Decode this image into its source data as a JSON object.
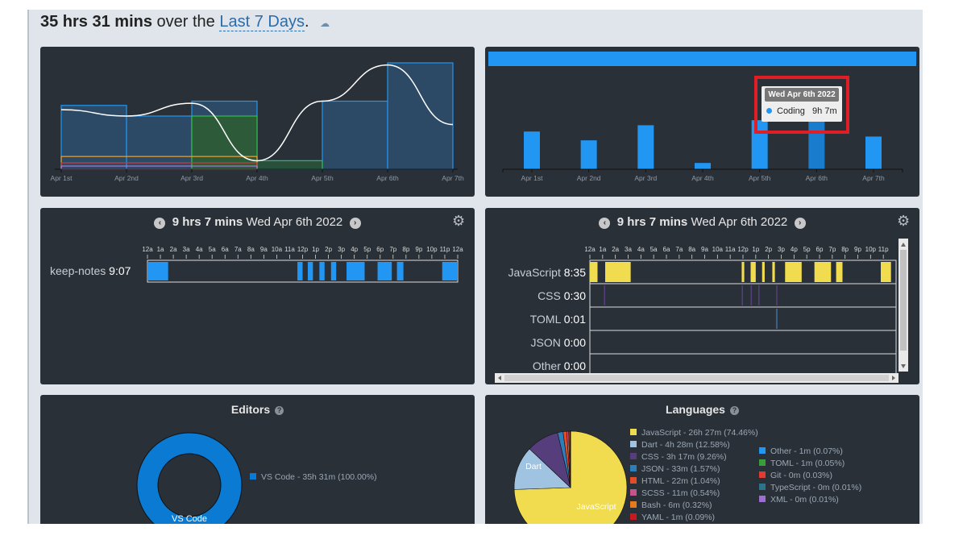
{
  "header": {
    "total": "35 hrs 31 mins",
    "middle": "over the",
    "range": "Last 7 Days",
    "period": ".",
    "cloud_icon": "cloud-download-icon"
  },
  "days": [
    "Apr 1st",
    "Apr 2nd",
    "Apr 3rd",
    "Apr 4th",
    "Apr 5th",
    "Apr 6th",
    "Apr 7th"
  ],
  "daily_bars": [
    0.6,
    0.46,
    0.7,
    0.1,
    0.78,
    0.96,
    0.52
  ],
  "tooltip": {
    "date": "Wed Apr 6th 2022",
    "label": "Coding",
    "value": "9h 7m"
  },
  "projects_day": {
    "title_total": "9 hrs 7 mins",
    "title_date": "Wed Apr 6th 2022",
    "hours": [
      "12a",
      "1a",
      "2a",
      "3a",
      "4a",
      "5a",
      "6a",
      "7a",
      "8a",
      "9a",
      "10a",
      "11a",
      "12p",
      "1p",
      "2p",
      "3p",
      "4p",
      "5p",
      "6p",
      "7p",
      "8p",
      "9p",
      "10p",
      "11p",
      "12a"
    ],
    "row": {
      "name": "keep-notes",
      "time": "9:07"
    },
    "segments": [
      [
        0.0,
        1.6
      ],
      [
        11.6,
        12.0
      ],
      [
        12.4,
        12.8
      ],
      [
        13.3,
        13.7
      ],
      [
        14.2,
        14.6
      ],
      [
        15.4,
        16.8
      ],
      [
        17.8,
        18.9
      ],
      [
        19.3,
        19.8
      ],
      [
        22.8,
        24.0
      ]
    ]
  },
  "languages_day": {
    "title_total": "9 hrs 7 mins",
    "title_date": "Wed Apr 6th 2022",
    "hours": [
      "12a",
      "1a",
      "2a",
      "3a",
      "4a",
      "5a",
      "6a",
      "7a",
      "8a",
      "9a",
      "10a",
      "11a",
      "12p",
      "1p",
      "2p",
      "3p",
      "4p",
      "5p",
      "6p",
      "7p",
      "8p",
      "9p",
      "10p",
      "11p"
    ],
    "rows": [
      {
        "name": "JavaScript",
        "time": "8:35"
      },
      {
        "name": "CSS",
        "time": "0:30"
      },
      {
        "name": "TOML",
        "time": "0:01"
      },
      {
        "name": "JSON",
        "time": "0:00"
      },
      {
        "name": "Other",
        "time": "0:00"
      }
    ],
    "js_segments": [
      [
        0.0,
        0.6
      ],
      [
        1.2,
        3.2
      ],
      [
        11.9,
        12.1
      ],
      [
        12.6,
        13.0
      ],
      [
        13.5,
        13.7
      ],
      [
        14.3,
        14.5
      ],
      [
        15.3,
        16.6
      ],
      [
        17.6,
        18.9
      ],
      [
        19.3,
        19.8
      ],
      [
        22.8,
        23.6
      ]
    ],
    "css_segments": [
      [
        1.1,
        1.2
      ],
      [
        11.9,
        12.0
      ],
      [
        12.6,
        12.7
      ],
      [
        13.2,
        13.3
      ],
      [
        14.6,
        14.7
      ]
    ],
    "toml_segments": [
      [
        14.6,
        14.7
      ]
    ]
  },
  "editors": {
    "title": "Editors",
    "legend": [
      "VS Code - 35h 31m (100.00%)"
    ],
    "donut_label": "VS Code",
    "color": "#0a7ad2"
  },
  "languages": {
    "title": "Languages",
    "legend_left": [
      {
        "label": "JavaScript - 26h 27m (74.46%)",
        "color": "#f0dc4e"
      },
      {
        "label": "Dart - 4h 28m (12.58%)",
        "color": "#9fc3e0"
      },
      {
        "label": "CSS - 3h 17m (9.26%)",
        "color": "#563d7c"
      },
      {
        "label": "JSON - 33m (1.57%)",
        "color": "#2c7fb8"
      },
      {
        "label": "HTML - 22m (1.04%)",
        "color": "#e34c26"
      },
      {
        "label": "SCSS - 11m (0.54%)",
        "color": "#c6538c"
      },
      {
        "label": "Bash - 6m (0.32%)",
        "color": "#e87a1e"
      },
      {
        "label": "YAML - 1m (0.09%)",
        "color": "#cb171e"
      }
    ],
    "legend_right": [
      {
        "label": "Other - 1m (0.07%)",
        "color": "#2196f3"
      },
      {
        "label": "TOML - 1m (0.05%)",
        "color": "#3a9c3a"
      },
      {
        "label": "Git - 0m (0.03%)",
        "color": "#e23c32"
      },
      {
        "label": "TypeScript - 0m (0.01%)",
        "color": "#2b7489"
      },
      {
        "label": "XML - 0m (0.01%)",
        "color": "#9b6fd0"
      }
    ],
    "pie_labels": {
      "javascript": "JavaScript",
      "dart": "Dart"
    }
  },
  "icons": {
    "prev": "chevron-left-icon",
    "next": "chevron-right-icon",
    "settings": "gear-icon",
    "help": "help-icon"
  }
}
